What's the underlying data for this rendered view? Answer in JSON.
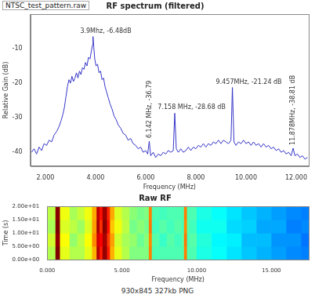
{
  "window_title": "NTSC_test_pattern.raw",
  "caption": "930x845 327kb PNG",
  "chart_data": [
    {
      "type": "line",
      "title": "RF spectrum (filtered)",
      "x_label": "Frequency (MHz)",
      "y_label": "Relative Gain (dB)",
      "color": "#3535c8",
      "grid": false,
      "xlim": [
        1.4,
        12.5
      ],
      "xticks": [
        {
          "value": 2,
          "label": "2.000"
        },
        {
          "value": 4,
          "label": "4.000"
        },
        {
          "value": 6,
          "label": "6.000"
        },
        {
          "value": 8,
          "label": "8.000"
        },
        {
          "value": 10,
          "label": "10.000"
        },
        {
          "value": 12,
          "label": "12.000"
        }
      ],
      "ylim": [
        -44,
        0
      ],
      "yticks": [
        -40,
        -30,
        -20,
        -10
      ],
      "x": [
        1.45,
        1.55,
        1.65,
        1.75,
        1.85,
        1.95,
        2.05,
        2.15,
        2.25,
        2.35,
        2.45,
        2.55,
        2.62,
        2.7,
        2.76,
        2.82,
        2.88,
        2.94,
        3.0,
        3.06,
        3.12,
        3.18,
        3.24,
        3.3,
        3.36,
        3.42,
        3.48,
        3.54,
        3.6,
        3.66,
        3.72,
        3.78,
        3.84,
        3.88,
        3.9,
        3.93,
        3.97,
        4.02,
        4.08,
        4.14,
        4.2,
        4.26,
        4.32,
        4.38,
        4.44,
        4.5,
        4.58,
        4.66,
        4.74,
        4.82,
        4.9,
        5.0,
        5.1,
        5.2,
        5.3,
        5.4,
        5.5,
        5.6,
        5.7,
        5.8,
        5.9,
        6.0,
        6.08,
        6.142,
        6.2,
        6.3,
        6.4,
        6.5,
        6.6,
        6.7,
        6.8,
        6.9,
        7.0,
        7.1,
        7.158,
        7.22,
        7.3,
        7.4,
        7.5,
        7.6,
        7.7,
        7.8,
        7.9,
        8.0,
        8.1,
        8.2,
        8.3,
        8.4,
        8.5,
        8.6,
        8.7,
        8.8,
        8.9,
        9.0,
        9.1,
        9.2,
        9.3,
        9.4,
        9.457,
        9.52,
        9.6,
        9.7,
        9.8,
        9.9,
        10.0,
        10.1,
        10.2,
        10.3,
        10.4,
        10.5,
        10.6,
        10.7,
        10.8,
        10.9,
        11.0,
        11.1,
        11.2,
        11.3,
        11.4,
        11.5,
        11.6,
        11.7,
        11.8,
        11.878,
        11.95,
        12.05,
        12.15,
        12.25,
        12.35,
        12.45
      ],
      "values": [
        -40,
        -39,
        -40.5,
        -38.5,
        -39.5,
        -37.5,
        -38,
        -36.5,
        -37,
        -35,
        -34,
        -32.5,
        -31,
        -29,
        -27,
        -24,
        -21,
        -19,
        -20,
        -18,
        -19.5,
        -18.5,
        -17,
        -18.5,
        -16.5,
        -17.5,
        -15.5,
        -16,
        -14,
        -15,
        -12.5,
        -13,
        -10.5,
        -9,
        -6.48,
        -9.5,
        -13,
        -15,
        -14.5,
        -17,
        -16.5,
        -19,
        -18.5,
        -21,
        -22.5,
        -24,
        -26,
        -27.5,
        -29.5,
        -30.5,
        -32,
        -33,
        -34.5,
        -35,
        -36.5,
        -36,
        -37.5,
        -38,
        -39,
        -38.5,
        -40,
        -39.5,
        -40.5,
        -36.79,
        -41,
        -40,
        -41.5,
        -40.5,
        -41,
        -40,
        -40.5,
        -39.5,
        -40,
        -39.5,
        -28.68,
        -39,
        -40,
        -39,
        -40,
        -39.5,
        -38.5,
        -39.5,
        -38.5,
        -39,
        -38,
        -38.5,
        -37.5,
        -38.5,
        -37.5,
        -38,
        -37,
        -37.5,
        -36.5,
        -37.5,
        -36.5,
        -37,
        -37.5,
        -36.5,
        -21.24,
        -37,
        -38,
        -37,
        -37.5,
        -36.5,
        -37.5,
        -37,
        -38,
        -37,
        -38,
        -37.5,
        -38.5,
        -37.5,
        -38.5,
        -38,
        -39,
        -38.5,
        -39.5,
        -39,
        -40,
        -39.5,
        -40.5,
        -40,
        -41,
        -38.81,
        -41,
        -40.5,
        -41.5,
        -41,
        -42,
        -41.5
      ],
      "annotations": [
        {
          "text": "3.9Mhz, -6.48dB",
          "x": 3.9,
          "y": -6.48
        },
        {
          "text": "6.142 MHz, -36.79",
          "x": 6.142,
          "y": -36.79
        },
        {
          "text": "7.158 MHz, -28.68 dB",
          "x": 7.158,
          "y": -28.68
        },
        {
          "text": "9.457MHz, -21.24 dB",
          "x": 9.457,
          "y": -21.24
        },
        {
          "text": "11.878MHz, -38.81 dB",
          "x": 11.878,
          "y": -38.81
        }
      ]
    },
    {
      "type": "heatmap",
      "title": "Raw RF",
      "x_label": "Frequency (MHz)",
      "y_label": "Time (s)",
      "grid": false,
      "xlim": [
        0,
        17.5
      ],
      "xticks": [
        {
          "value": 0,
          "label": "0.000"
        },
        {
          "value": 5,
          "label": "5.000"
        },
        {
          "value": 10,
          "label": "10.000"
        },
        {
          "value": 15,
          "label": "15.000"
        }
      ],
      "ylim": [
        0,
        20
      ],
      "yticks": [
        {
          "value": 0,
          "label": "0.00e+00"
        },
        {
          "value": 5,
          "label": "5.00e+00"
        },
        {
          "value": 10,
          "label": "1.00e+01"
        },
        {
          "value": 15,
          "label": "1.50e+01"
        },
        {
          "value": 20,
          "label": "2.00e+01"
        }
      ],
      "zlim": [
        0,
        10
      ],
      "x_edges": [
        0,
        0.55,
        0.85,
        1.5,
        2,
        2.5,
        3,
        3.3,
        3.5,
        3.7,
        4.0,
        4.2,
        4.5,
        5,
        5.5,
        6,
        6.5,
        6.8,
        7.0,
        7.5,
        8,
        8.5,
        9,
        9.15,
        9.35,
        9.5,
        10,
        11,
        12,
        13,
        14,
        15,
        16,
        17,
        17.5
      ],
      "y_edges": [
        0,
        5,
        10,
        15,
        20
      ],
      "cells": [
        [
          5.5,
          10,
          6,
          5.5,
          5.5,
          6,
          7,
          9.5,
          8.5,
          9.8,
          8.5,
          7,
          6,
          5.5,
          5,
          5,
          5,
          7.5,
          4.5,
          4.5,
          4.5,
          4.5,
          4.5,
          7.5,
          4.5,
          4.5,
          4,
          3.8,
          3.5,
          3.2,
          3,
          2.8,
          2.6,
          2.5
        ],
        [
          5.8,
          9.8,
          6.2,
          5.2,
          5.6,
          6.2,
          7.4,
          9.2,
          8.8,
          9.6,
          8.2,
          7.2,
          5.8,
          5.4,
          5.2,
          4.8,
          5.1,
          7.4,
          4.6,
          4.3,
          4.6,
          4.4,
          4.6,
          7.6,
          4.4,
          4.6,
          4.1,
          3.7,
          3.6,
          3.1,
          3.1,
          2.7,
          2.7,
          2.4
        ],
        [
          5.4,
          10,
          5.9,
          5.6,
          5.3,
          5.9,
          7.2,
          9.6,
          8.3,
          9.9,
          8.6,
          6.8,
          6.1,
          5.6,
          4.9,
          5.1,
          4.9,
          7.6,
          4.4,
          4.6,
          4.4,
          4.6,
          4.4,
          7.4,
          4.6,
          4.4,
          3.9,
          3.9,
          3.4,
          3.3,
          2.9,
          2.9,
          2.5,
          2.6
        ],
        [
          5.6,
          9.9,
          6.1,
          5.4,
          5.7,
          6.1,
          7.1,
          9.4,
          8.6,
          9.7,
          8.4,
          7.1,
          5.9,
          5.5,
          5.1,
          4.9,
          5,
          7.5,
          4.5,
          4.4,
          4.5,
          4.5,
          4.5,
          7.5,
          4.5,
          4.5,
          4,
          3.8,
          3.5,
          3.2,
          3,
          2.8,
          2.6,
          2.5
        ]
      ]
    }
  ]
}
